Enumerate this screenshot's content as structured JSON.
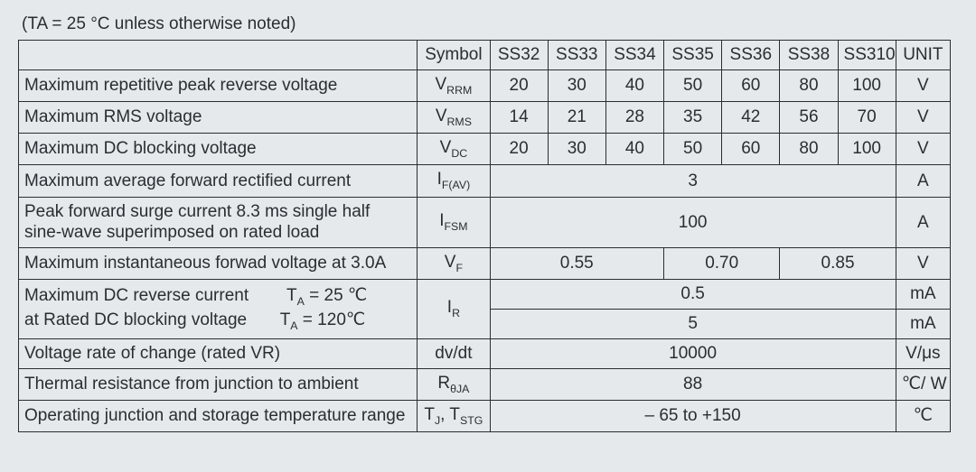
{
  "caption": "(TA = 25 °C unless otherwise noted)",
  "headers": {
    "param": "",
    "symbol": "Symbol",
    "parts": [
      "SS32",
      "SS33",
      "SS34",
      "SS35",
      "SS36",
      "SS38",
      "SS310"
    ],
    "unit": "UNIT"
  },
  "rows": {
    "vrrm": {
      "param": "Maximum repetitive peak reverse voltage",
      "symbol_html": "V<sub>RRM</sub>",
      "vals": [
        "20",
        "30",
        "40",
        "50",
        "60",
        "80",
        "100"
      ],
      "unit": "V"
    },
    "vrms": {
      "param": "Maximum RMS voltage",
      "symbol_html": "V<sub>RMS</sub>",
      "vals": [
        "14",
        "21",
        "28",
        "35",
        "42",
        "56",
        "70"
      ],
      "unit": "V"
    },
    "vdc": {
      "param": "Maximum DC blocking voltage",
      "symbol_html": "V<sub>DC</sub>",
      "vals": [
        "20",
        "30",
        "40",
        "50",
        "60",
        "80",
        "100"
      ],
      "unit": "V"
    },
    "ifav": {
      "param": "Maximum average forward rectified current",
      "symbol_html": "I<sub>F(AV)</sub>",
      "val_all": "3",
      "unit": "A"
    },
    "ifsm": {
      "param": "Peak forward surge current 8.3 ms single half sine-wave superimposed on rated load",
      "symbol_html": "I<sub>FSM</sub>",
      "val_all": "100",
      "unit": "A"
    },
    "vf": {
      "param": "Maximum instantaneous forwad voltage at 3.0A",
      "symbol_html": "V<sub>F</sub>",
      "groups": [
        "0.55",
        "0.70",
        "0.85"
      ],
      "group_spans": [
        3,
        2,
        2
      ],
      "unit": "V"
    },
    "ir": {
      "param_html": "Maximum DC reverse current &nbsp;&nbsp;&nbsp;&nbsp;&nbsp;&nbsp; T<sub>A</sub> = 25 ℃<br>at Rated DC blocking voltage &nbsp;&nbsp;&nbsp;&nbsp;&nbsp; T<sub>A</sub> = 120℃",
      "symbol_html": "I<sub>R</sub>",
      "row1_val": "0.5",
      "row1_unit": "mA",
      "row2_val": "5",
      "row2_unit": "mA"
    },
    "dvdt": {
      "param": "Voltage rate of change (rated VR)",
      "symbol_html": "dv/dt",
      "val_all": "10000",
      "unit": "V/μs"
    },
    "rthja": {
      "param": "Thermal resistance from junction to ambient",
      "symbol_html": "R<sub>θJA</sub>",
      "val_all": "88",
      "unit": "℃/ W"
    },
    "tjtstg": {
      "param": "Operating junction and storage temperature range",
      "symbol_html": "T<sub>J</sub>, T<sub>STG</sub>",
      "val_all": "– 65 to +150",
      "unit": "℃"
    }
  }
}
